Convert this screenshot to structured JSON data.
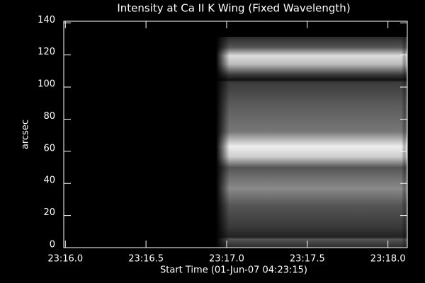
{
  "chart_data": {
    "type": "image",
    "title": "Intensity at Ca II K Wing (Fixed Wavelength)",
    "x_label": "Start Time (01-Jun-07 04:23:15)",
    "y_label": "arcsec",
    "xlim": [
      15.99,
      18.12
    ],
    "xticks": [
      {
        "value": 16.0,
        "label": "23:16.0"
      },
      {
        "value": 16.5,
        "label": "23:16.5"
      },
      {
        "value": 17.0,
        "label": "23:17.0"
      },
      {
        "value": 17.5,
        "label": "23:17.5"
      },
      {
        "value": 18.0,
        "label": "23:18.0"
      }
    ],
    "ylim": [
      0,
      141
    ],
    "yticks": [
      0,
      20,
      40,
      60,
      80,
      100,
      120,
      140
    ]
  }
}
